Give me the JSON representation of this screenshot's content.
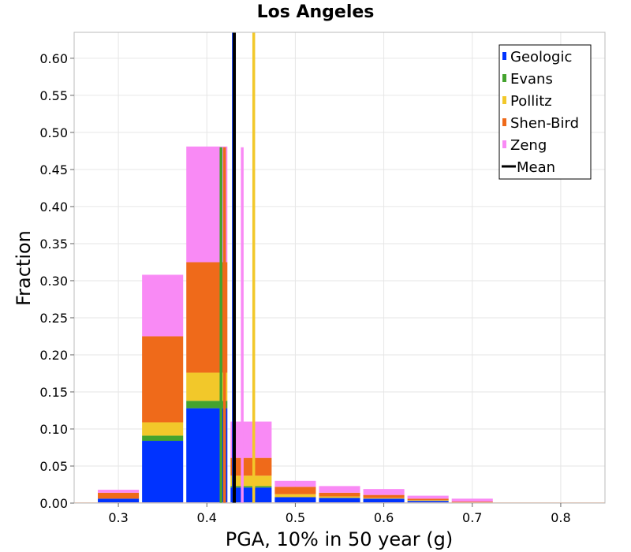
{
  "chart_data": {
    "type": "bar",
    "stacked": true,
    "title": "Los Angeles",
    "xlabel": "PGA, 10% in 50 year (g)",
    "ylabel": "Fraction",
    "xlim": [
      0.25,
      0.85
    ],
    "ylim": [
      0,
      0.635
    ],
    "grid": true,
    "legend_position": "top-right",
    "bin_width": 0.05,
    "x": [
      0.3,
      0.35,
      0.4,
      0.45,
      0.5,
      0.55,
      0.6,
      0.65,
      0.7,
      0.75,
      0.8
    ],
    "x_ticks": [
      "0.3",
      "0.4",
      "0.5",
      "0.6",
      "0.7",
      "0.8"
    ],
    "y_ticks": [
      "0.00",
      "0.05",
      "0.10",
      "0.15",
      "0.20",
      "0.25",
      "0.30",
      "0.35",
      "0.40",
      "0.45",
      "0.50",
      "0.55",
      "0.60"
    ],
    "series": [
      {
        "name": "Geologic",
        "color": "#0033ff",
        "values": [
          0.006,
          0.084,
          0.128,
          0.021,
          0.008,
          0.007,
          0.006,
          0.003,
          0.001,
          0.0,
          0.0
        ]
      },
      {
        "name": "Evans",
        "color": "#44a32e",
        "values": [
          0.0,
          0.007,
          0.01,
          0.002,
          0.0,
          0.0,
          0.0,
          0.0,
          0.0,
          0.0,
          0.0
        ]
      },
      {
        "name": "Pollitz",
        "color": "#f2c82a",
        "values": [
          0.0,
          0.018,
          0.038,
          0.014,
          0.004,
          0.002,
          0.001,
          0.001,
          0.0,
          0.0,
          0.0
        ]
      },
      {
        "name": "Shen-Bird",
        "color": "#ef6a1a",
        "values": [
          0.008,
          0.116,
          0.149,
          0.024,
          0.01,
          0.005,
          0.004,
          0.002,
          0.001,
          0.0,
          0.0
        ]
      },
      {
        "name": "Zeng",
        "color": "#f98af5",
        "values": [
          0.004,
          0.083,
          0.156,
          0.049,
          0.008,
          0.009,
          0.008,
          0.004,
          0.004,
          0.001,
          0.001
        ]
      }
    ],
    "vertical_lines": [
      {
        "name": "Evans",
        "color": "#44a32e",
        "x": 0.416,
        "ymax": 0.48
      },
      {
        "name": "Shen-Bird",
        "color": "#ef6a1a",
        "x": 0.42,
        "ymax": 0.48
      },
      {
        "name": "Zeng",
        "color": "#f98af5",
        "x": 0.44,
        "ymax": 0.48
      },
      {
        "name": "Pollitz",
        "color": "#f2c82a",
        "x": 0.453,
        "ymax": 0.635
      },
      {
        "name": "Geologic",
        "color": "#0033ff",
        "x": 0.43,
        "ymax": 0.635
      },
      {
        "name": "Mean",
        "color": "#000000",
        "x": 0.431,
        "ymax": 0.635
      }
    ],
    "legend": [
      {
        "label": "Geologic",
        "color": "#0033ff"
      },
      {
        "label": "Evans",
        "color": "#44a32e"
      },
      {
        "label": "Pollitz",
        "color": "#f2c82a"
      },
      {
        "label": "Shen-Bird",
        "color": "#ef6a1a"
      },
      {
        "label": "Zeng",
        "color": "#f98af5"
      },
      {
        "label": "Mean",
        "color": "#000000",
        "style": "line"
      }
    ]
  }
}
